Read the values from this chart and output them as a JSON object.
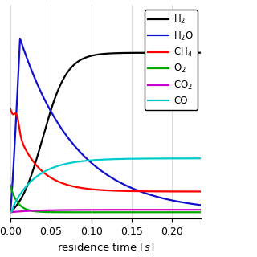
{
  "xlabel": "residence time $[s]$",
  "xlim": [
    0,
    0.235
  ],
  "ylim": [
    -0.015,
    0.5
  ],
  "xticks": [
    0,
    0.05,
    0.1,
    0.15,
    0.2
  ],
  "legend_labels": [
    "H$_2$",
    "H$_2$O",
    "CH$_4$",
    "O$_2$",
    "CO$_2$",
    "CO"
  ],
  "legend_colors": [
    "black",
    "#1111cc",
    "red",
    "#00aa00",
    "#cc00cc",
    "#00cccc"
  ],
  "bg_color": "white",
  "lw": 1.6
}
